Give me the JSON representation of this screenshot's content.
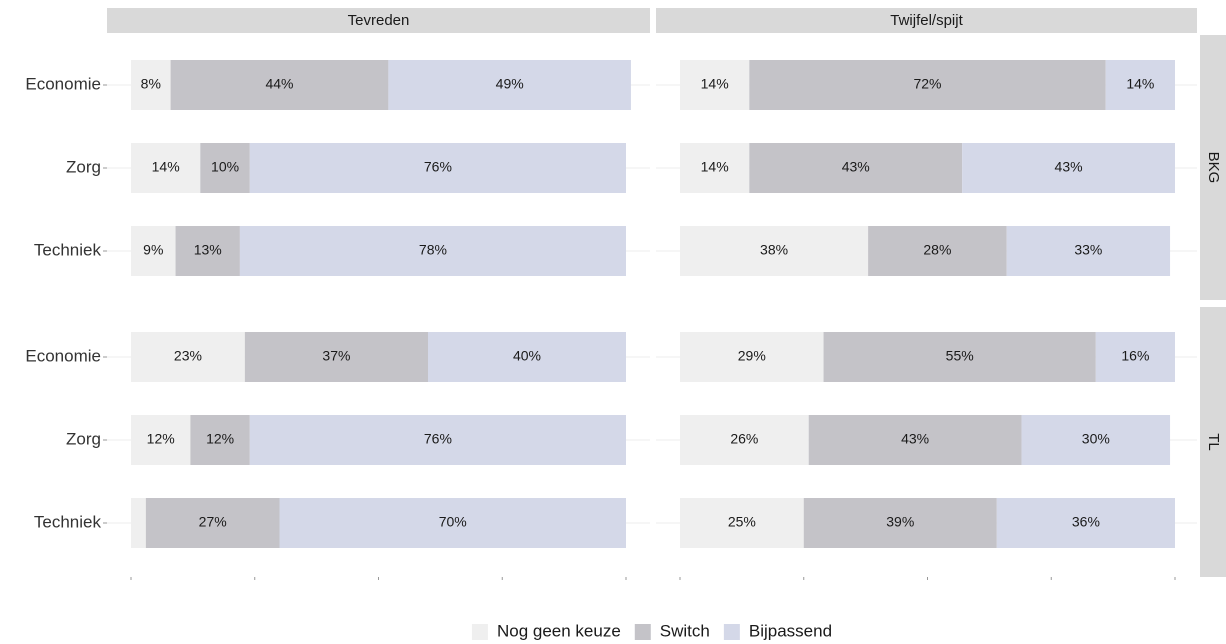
{
  "chart_data": {
    "type": "stacked-barh",
    "col_facets": [
      "Tevreden",
      "Twijfel/spijt"
    ],
    "row_facets": [
      "BKG",
      "TL"
    ],
    "categories": [
      "Economie",
      "Zorg",
      "Techniek"
    ],
    "xlim": [
      0,
      100
    ],
    "xticks": [
      0,
      25,
      50,
      75,
      100
    ],
    "grid": true,
    "legend": "bottom",
    "series": [
      {
        "name": "Nog geen keuze",
        "color": "#efefef"
      },
      {
        "name": "Switch",
        "color": "#c4c3c8"
      },
      {
        "name": "Bijpassend",
        "color": "#d4d8e8"
      }
    ],
    "panels": [
      {
        "col": 0,
        "row": 0,
        "series": [
          {
            "values": [
              8,
              14,
              9
            ],
            "value_labels": [
              "8%",
              "14%",
              "9%"
            ]
          },
          {
            "values": [
              44,
              10,
              13
            ],
            "value_labels": [
              "44%",
              "10%",
              "13%"
            ]
          },
          {
            "values": [
              49,
              76,
              78
            ],
            "value_labels": [
              "49%",
              "76%",
              "78%"
            ]
          }
        ]
      },
      {
        "col": 1,
        "row": 0,
        "series": [
          {
            "values": [
              14,
              14,
              38
            ],
            "value_labels": [
              "14%",
              "14%",
              "38%"
            ]
          },
          {
            "values": [
              72,
              43,
              28
            ],
            "value_labels": [
              "72%",
              "43%",
              "28%"
            ]
          },
          {
            "values": [
              14,
              43,
              33
            ],
            "value_labels": [
              "14%",
              "43%",
              "33%"
            ]
          }
        ]
      },
      {
        "col": 0,
        "row": 1,
        "series": [
          {
            "values": [
              23,
              12,
              3
            ],
            "value_labels": [
              "23%",
              "12%",
              null
            ]
          },
          {
            "values": [
              37,
              12,
              27
            ],
            "value_labels": [
              "37%",
              "12%",
              "27%"
            ]
          },
          {
            "values": [
              40,
              76,
              70
            ],
            "value_labels": [
              "40%",
              "76%",
              "70%"
            ]
          }
        ]
      },
      {
        "col": 1,
        "row": 1,
        "series": [
          {
            "values": [
              29,
              26,
              25
            ],
            "value_labels": [
              "29%",
              "26%",
              "25%"
            ]
          },
          {
            "values": [
              55,
              43,
              39
            ],
            "value_labels": [
              "55%",
              "43%",
              "39%"
            ]
          },
          {
            "values": [
              16,
              30,
              36
            ],
            "value_labels": [
              "16%",
              "30%",
              "36%"
            ]
          }
        ]
      }
    ]
  }
}
